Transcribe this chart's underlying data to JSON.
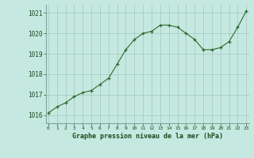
{
  "x": [
    0,
    1,
    2,
    3,
    4,
    5,
    6,
    7,
    8,
    9,
    10,
    11,
    12,
    13,
    14,
    15,
    16,
    17,
    18,
    19,
    20,
    21,
    22,
    23
  ],
  "y": [
    1016.1,
    1016.4,
    1016.6,
    1016.9,
    1017.1,
    1017.2,
    1017.5,
    1017.8,
    1018.5,
    1019.2,
    1019.7,
    1020.0,
    1020.1,
    1020.4,
    1020.4,
    1020.3,
    1020.0,
    1019.7,
    1019.2,
    1019.2,
    1019.3,
    1019.6,
    1020.3,
    1021.1
  ],
  "line_color": "#2d6a2d",
  "marker": "+",
  "bg_color": "#c5e8e0",
  "grid_color": "#a0c8be",
  "xlabel": "Graphe pression niveau de la mer (hPa)",
  "xlabel_color": "#1a4a1a",
  "tick_color": "#1a4a1a",
  "ylim_min": 1015.6,
  "ylim_max": 1021.4,
  "yticks": [
    1016,
    1017,
    1018,
    1019,
    1020,
    1021
  ],
  "xticks": [
    0,
    1,
    2,
    3,
    4,
    5,
    6,
    7,
    8,
    9,
    10,
    11,
    12,
    13,
    14,
    15,
    16,
    17,
    18,
    19,
    20,
    21,
    22,
    23
  ],
  "spine_color": "#7aaa9a"
}
